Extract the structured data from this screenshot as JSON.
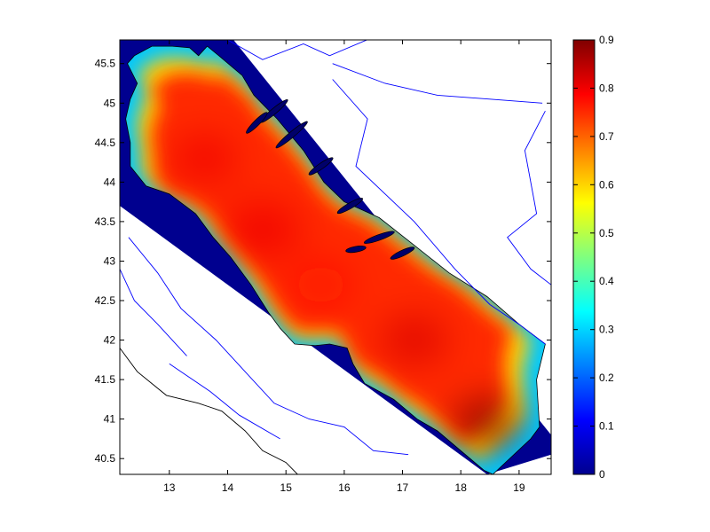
{
  "chart_data": {
    "type": "heatmap",
    "title": "",
    "xlabel": "",
    "ylabel": "",
    "xlim": [
      12.15,
      19.55
    ],
    "ylim": [
      40.3,
      45.8
    ],
    "x_ticks": [
      {
        "value": 13,
        "label": "13"
      },
      {
        "value": 14,
        "label": "14"
      },
      {
        "value": 15,
        "label": "15"
      },
      {
        "value": 16,
        "label": "16"
      },
      {
        "value": 17,
        "label": "17"
      },
      {
        "value": 18,
        "label": "18"
      },
      {
        "value": 19,
        "label": "19"
      }
    ],
    "y_ticks": [
      {
        "value": 40.5,
        "label": "40.5"
      },
      {
        "value": 41,
        "label": "41"
      },
      {
        "value": 41.5,
        "label": "41.5"
      },
      {
        "value": 42,
        "label": "42"
      },
      {
        "value": 42.5,
        "label": "42.5"
      },
      {
        "value": 43,
        "label": "43"
      },
      {
        "value": 43.5,
        "label": "43.5"
      },
      {
        "value": 44,
        "label": "44"
      },
      {
        "value": 44.5,
        "label": "44.5"
      },
      {
        "value": 45,
        "label": "45"
      },
      {
        "value": 45.5,
        "label": "45.5"
      }
    ],
    "colorbar": {
      "colormap": "jet",
      "range": [
        0,
        0.9
      ],
      "ticks": [
        {
          "value": 0,
          "label": "0"
        },
        {
          "value": 0.1,
          "label": "0.1"
        },
        {
          "value": 0.2,
          "label": "0.2"
        },
        {
          "value": 0.3,
          "label": "0.3"
        },
        {
          "value": 0.4,
          "label": "0.4"
        },
        {
          "value": 0.5,
          "label": "0.5"
        },
        {
          "value": 0.6,
          "label": "0.6"
        },
        {
          "value": 0.7,
          "label": "0.7"
        },
        {
          "value": 0.8,
          "label": "0.8"
        },
        {
          "value": 0.9,
          "label": "0.9"
        }
      ]
    },
    "colors": {
      "outside_domain": "#00008f",
      "land": "#ffffff",
      "borders": "#0000ff",
      "coastline": "#000000"
    },
    "domain_corners": [
      [
        12.15,
        45.8
      ],
      [
        14.1,
        45.8
      ],
      [
        19.55,
        40.8
      ],
      [
        19.55,
        40.55
      ],
      [
        18.45,
        40.3
      ],
      [
        12.15,
        43.7
      ]
    ],
    "sea_outline": [
      [
        12.28,
        45.5
      ],
      [
        12.45,
        45.25
      ],
      [
        12.33,
        45.05
      ],
      [
        12.25,
        44.8
      ],
      [
        12.33,
        44.5
      ],
      [
        12.33,
        44.2
      ],
      [
        12.6,
        43.95
      ],
      [
        13.0,
        43.85
      ],
      [
        13.45,
        43.6
      ],
      [
        13.75,
        43.3
      ],
      [
        14.05,
        43.05
      ],
      [
        14.4,
        42.7
      ],
      [
        14.7,
        42.35
      ],
      [
        14.9,
        42.15
      ],
      [
        15.15,
        41.95
      ],
      [
        15.5,
        41.93
      ],
      [
        15.75,
        41.95
      ],
      [
        16.05,
        41.9
      ],
      [
        16.15,
        41.7
      ],
      [
        16.35,
        41.45
      ],
      [
        16.85,
        41.25
      ],
      [
        17.25,
        41.0
      ],
      [
        17.6,
        40.85
      ],
      [
        18.0,
        40.6
      ],
      [
        18.4,
        40.35
      ],
      [
        18.55,
        40.3
      ],
      [
        19.2,
        40.75
      ],
      [
        19.35,
        40.9
      ],
      [
        19.3,
        41.5
      ],
      [
        19.45,
        41.95
      ],
      [
        19.0,
        42.2
      ],
      [
        18.45,
        42.55
      ],
      [
        17.8,
        42.85
      ],
      [
        17.2,
        43.2
      ],
      [
        16.6,
        43.55
      ],
      [
        16.0,
        43.75
      ],
      [
        15.65,
        44.0
      ],
      [
        15.3,
        44.4
      ],
      [
        14.85,
        44.8
      ],
      [
        14.45,
        45.1
      ],
      [
        14.25,
        45.35
      ],
      [
        13.85,
        45.6
      ],
      [
        13.65,
        45.72
      ],
      [
        13.5,
        45.6
      ],
      [
        13.35,
        45.7
      ],
      [
        13.05,
        45.72
      ],
      [
        12.7,
        45.72
      ],
      [
        12.4,
        45.6
      ]
    ],
    "hotspots": [
      {
        "lon": 13.6,
        "lat": 44.3,
        "value": 0.8,
        "radius": 0.55
      },
      {
        "lon": 14.6,
        "lat": 43.4,
        "value": 0.8,
        "radius": 0.65
      },
      {
        "lon": 15.6,
        "lat": 42.7,
        "value": 0.78,
        "radius": 0.5
      },
      {
        "lon": 17.2,
        "lat": 42.0,
        "value": 0.82,
        "radius": 0.55
      },
      {
        "lon": 18.45,
        "lat": 40.95,
        "value": 0.9,
        "radius": 0.55
      }
    ],
    "islands": [
      {
        "lon": 14.8,
        "lat": 44.9,
        "len": 0.6,
        "angle": -40
      },
      {
        "lon": 15.1,
        "lat": 44.6,
        "len": 0.7,
        "angle": -40
      },
      {
        "lon": 15.6,
        "lat": 44.2,
        "len": 0.5,
        "angle": -35
      },
      {
        "lon": 16.1,
        "lat": 43.7,
        "len": 0.5,
        "angle": -30
      },
      {
        "lon": 16.6,
        "lat": 43.3,
        "len": 0.55,
        "angle": -20
      },
      {
        "lon": 17.0,
        "lat": 43.1,
        "len": 0.45,
        "angle": -25
      },
      {
        "lon": 16.2,
        "lat": 43.15,
        "len": 0.35,
        "angle": -10
      },
      {
        "lon": 14.5,
        "lat": 44.75,
        "len": 0.5,
        "angle": -45
      }
    ],
    "borders": [
      [
        [
          14.0,
          45.8
        ],
        [
          14.6,
          45.55
        ],
        [
          15.3,
          45.75
        ],
        [
          15.75,
          45.6
        ],
        [
          16.55,
          45.85
        ]
      ],
      [
        [
          15.8,
          45.5
        ],
        [
          16.7,
          45.25
        ],
        [
          17.6,
          45.1
        ],
        [
          18.5,
          45.05
        ],
        [
          19.4,
          45.0
        ]
      ],
      [
        [
          15.8,
          45.3
        ],
        [
          16.4,
          44.8
        ],
        [
          16.2,
          44.2
        ],
        [
          17.2,
          43.5
        ],
        [
          17.9,
          42.9
        ],
        [
          18.5,
          42.45
        ]
      ],
      [
        [
          19.45,
          44.9
        ],
        [
          19.1,
          44.4
        ],
        [
          19.3,
          43.6
        ],
        [
          18.8,
          43.3
        ],
        [
          19.2,
          42.9
        ],
        [
          19.55,
          42.7
        ]
      ],
      [
        [
          18.5,
          42.45
        ],
        [
          19.0,
          42.2
        ],
        [
          19.45,
          41.95
        ]
      ],
      [
        [
          12.3,
          43.3
        ],
        [
          12.8,
          42.85
        ],
        [
          13.2,
          42.4
        ],
        [
          13.8,
          42.0
        ],
        [
          14.3,
          41.6
        ],
        [
          14.8,
          41.2
        ],
        [
          15.4,
          41.0
        ],
        [
          16.0,
          40.9
        ],
        [
          16.5,
          40.6
        ],
        [
          17.1,
          40.55
        ]
      ],
      [
        [
          12.15,
          42.9
        ],
        [
          12.4,
          42.5
        ],
        [
          12.8,
          42.2
        ],
        [
          13.3,
          41.8
        ]
      ],
      [
        [
          13.0,
          41.7
        ],
        [
          13.7,
          41.35
        ],
        [
          14.2,
          41.05
        ],
        [
          14.9,
          40.75
        ]
      ]
    ],
    "coast_west": [
      [
        12.15,
        41.9
      ],
      [
        12.45,
        41.6
      ],
      [
        12.95,
        41.3
      ],
      [
        13.5,
        41.2
      ],
      [
        13.9,
        41.1
      ],
      [
        14.3,
        40.85
      ],
      [
        14.6,
        40.6
      ],
      [
        15.0,
        40.45
      ],
      [
        15.2,
        40.3
      ]
    ]
  }
}
